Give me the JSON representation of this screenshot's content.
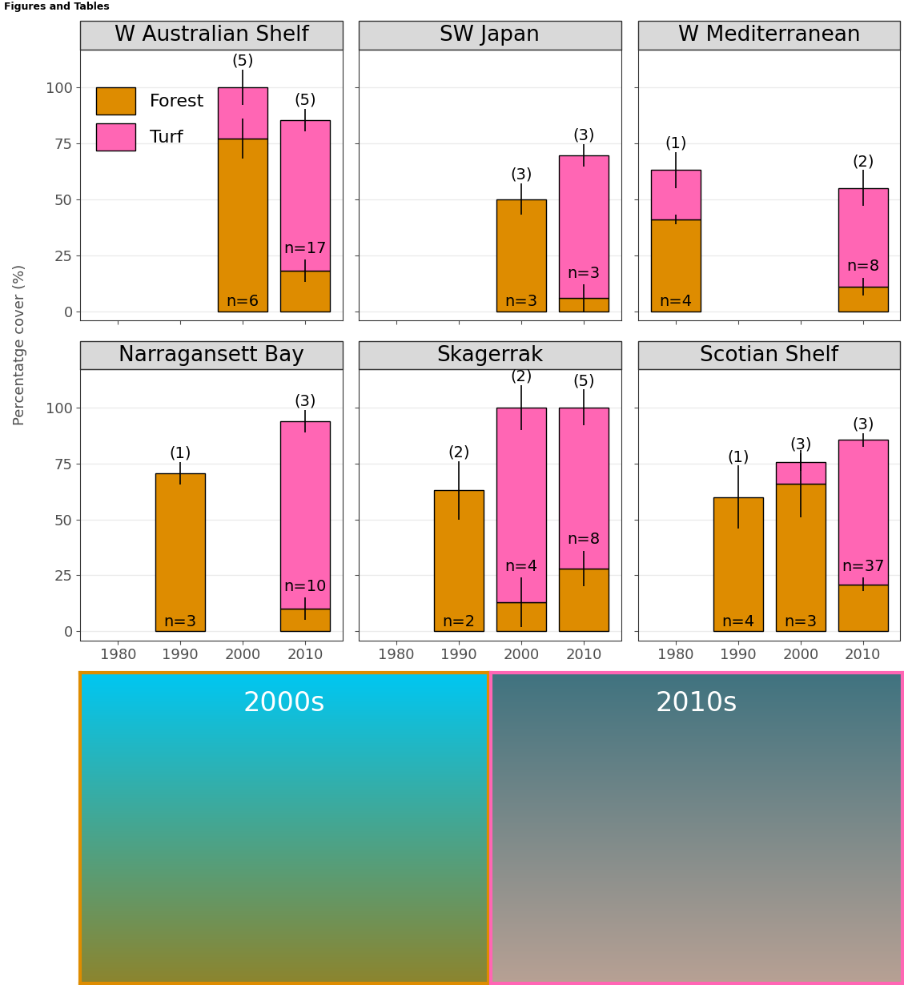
{
  "header": "Figures and Tables",
  "y_label": "Percentatge cover (%)",
  "photos": [
    {
      "label": "2000s"
    },
    {
      "label": "2010s"
    }
  ],
  "chart_data": [
    {
      "type": "bar",
      "title": "W Australian Shelf",
      "stacked": true,
      "grid": true,
      "legend": "upper left",
      "tick_labels": "y",
      "x": [
        1980,
        1990,
        2000,
        2010
      ],
      "xlim": [
        1974,
        2016
      ],
      "xticks": [
        1980,
        1990,
        2000,
        2010
      ],
      "ylim": [
        -4,
        117
      ],
      "yticks": [
        0,
        25,
        50,
        75,
        100
      ],
      "series": [
        {
          "name": "Forest",
          "color": "#DE8C00",
          "values": [
            null,
            null,
            77,
            18
          ],
          "errors": [
            null,
            null,
            9,
            5
          ]
        },
        {
          "name": "Turf",
          "color": "#FF66B4",
          "values": [
            null,
            null,
            23,
            67.5
          ],
          "errors": [
            null,
            null,
            8,
            5
          ]
        }
      ],
      "n_labels": [
        null,
        null,
        "n=6",
        "n=17"
      ],
      "study_counts": [
        null,
        null,
        "(5)",
        "(5)"
      ]
    },
    {
      "type": "bar",
      "title": "SW Japan",
      "stacked": true,
      "grid": true,
      "tick_labels": false,
      "x": [
        1980,
        1990,
        2000,
        2010
      ],
      "xlim": [
        1974,
        2016
      ],
      "xticks": [
        1980,
        1990,
        2000,
        2010
      ],
      "ylim": [
        -4,
        117
      ],
      "yticks": [
        0,
        25,
        50,
        75,
        100
      ],
      "series": [
        {
          "name": "Forest",
          "color": "#DE8C00",
          "values": [
            null,
            null,
            50,
            6
          ],
          "errors": [
            null,
            null,
            7,
            6
          ]
        },
        {
          "name": "Turf",
          "color": "#FF66B4",
          "values": [
            null,
            null,
            null,
            63.5
          ],
          "errors": [
            null,
            null,
            null,
            5
          ]
        }
      ],
      "n_labels": [
        null,
        null,
        "n=3",
        "n=3"
      ],
      "study_counts": [
        null,
        null,
        "(3)",
        "(3)"
      ]
    },
    {
      "type": "bar",
      "title": "W Mediterranean",
      "stacked": true,
      "grid": true,
      "tick_labels": false,
      "x": [
        1980,
        1990,
        2000,
        2010
      ],
      "xlim": [
        1974,
        2016
      ],
      "xticks": [
        1980,
        1990,
        2000,
        2010
      ],
      "ylim": [
        -4,
        117
      ],
      "yticks": [
        0,
        25,
        50,
        75,
        100
      ],
      "series": [
        {
          "name": "Forest",
          "color": "#DE8C00",
          "values": [
            41,
            null,
            null,
            11
          ],
          "errors": [
            2,
            null,
            null,
            4
          ]
        },
        {
          "name": "Turf",
          "color": "#FF66B4",
          "values": [
            22,
            null,
            null,
            44
          ],
          "errors": [
            8,
            null,
            null,
            8
          ]
        }
      ],
      "n_labels": [
        "n=4",
        null,
        null,
        "n=8"
      ],
      "study_counts": [
        "(1)",
        null,
        null,
        "(2)"
      ]
    },
    {
      "type": "bar",
      "title": "Narragansett Bay",
      "stacked": true,
      "grid": true,
      "tick_labels": true,
      "x": [
        1980,
        1990,
        2000,
        2010
      ],
      "xlim": [
        1974,
        2016
      ],
      "xticks": [
        1980,
        1990,
        2000,
        2010
      ],
      "ylim": [
        -4,
        117
      ],
      "yticks": [
        0,
        25,
        50,
        75,
        100
      ],
      "series": [
        {
          "name": "Forest",
          "color": "#DE8C00",
          "values": [
            null,
            70.5,
            null,
            10
          ],
          "errors": [
            null,
            5,
            null,
            5
          ]
        },
        {
          "name": "Turf",
          "color": "#FF66B4",
          "values": [
            null,
            null,
            null,
            84
          ],
          "errors": [
            null,
            null,
            null,
            5
          ]
        }
      ],
      "n_labels": [
        null,
        "n=3",
        null,
        "n=10"
      ],
      "study_counts": [
        null,
        "(1)",
        null,
        "(3)"
      ]
    },
    {
      "type": "bar",
      "title": "Skagerrak",
      "stacked": true,
      "grid": true,
      "tick_labels": "x",
      "x": [
        1980,
        1990,
        2000,
        2010
      ],
      "xlim": [
        1974,
        2016
      ],
      "xticks": [
        1980,
        1990,
        2000,
        2010
      ],
      "ylim": [
        -4,
        117
      ],
      "yticks": [
        0,
        25,
        50,
        75,
        100
      ],
      "series": [
        {
          "name": "Forest",
          "color": "#DE8C00",
          "values": [
            null,
            63,
            13,
            28
          ],
          "errors": [
            null,
            13,
            11,
            8
          ]
        },
        {
          "name": "Turf",
          "color": "#FF66B4",
          "values": [
            null,
            null,
            87,
            72
          ],
          "errors": [
            null,
            null,
            10,
            8
          ]
        }
      ],
      "n_labels": [
        null,
        "n=2",
        "n=4",
        "n=8"
      ],
      "study_counts": [
        null,
        "(2)",
        "(2)",
        "(5)"
      ]
    },
    {
      "type": "bar",
      "title": "Scotian Shelf",
      "stacked": true,
      "grid": true,
      "tick_labels": "x",
      "x": [
        1980,
        1990,
        2000,
        2010
      ],
      "xlim": [
        1974,
        2016
      ],
      "xticks": [
        1980,
        1990,
        2000,
        2010
      ],
      "ylim": [
        -4,
        117
      ],
      "yticks": [
        0,
        25,
        50,
        75,
        100
      ],
      "series": [
        {
          "name": "Forest",
          "color": "#DE8C00",
          "values": [
            null,
            60,
            66,
            21
          ],
          "errors": [
            null,
            14,
            15,
            3
          ]
        },
        {
          "name": "Turf",
          "color": "#FF66B4",
          "values": [
            null,
            null,
            9.5,
            64.5
          ],
          "errors": [
            null,
            null,
            4,
            3
          ]
        }
      ],
      "n_labels": [
        null,
        "n=4",
        "n=3",
        "n=37"
      ],
      "study_counts": [
        null,
        "(1)",
        "(3)",
        "(3)"
      ]
    }
  ]
}
